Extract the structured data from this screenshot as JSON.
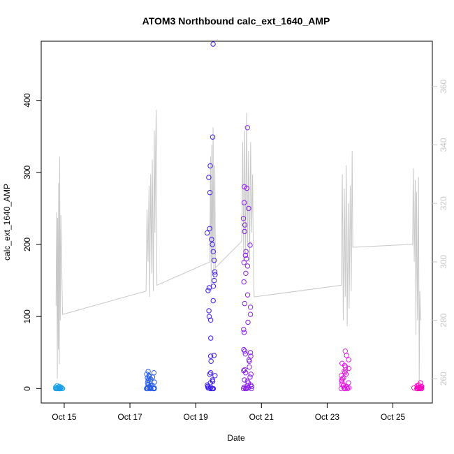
{
  "chart_data": {
    "type": "scatter",
    "title": "ATOM3 Northbound calc_ext_1640_AMP",
    "xlabel": "Date",
    "ylabel": "calc_ext_1640_AMP",
    "x_ticks": [
      "Oct 15",
      "Oct 17",
      "Oct 19",
      "Oct 21",
      "Oct 23",
      "Oct 25"
    ],
    "x_tick_days": [
      15,
      17,
      19,
      21,
      23,
      25
    ],
    "xlim_days": [
      14.3,
      26.2
    ],
    "ylim": [
      -20,
      482
    ],
    "y_ticks": [
      0,
      100,
      200,
      300,
      400
    ],
    "y2_ticks": [
      260,
      280,
      300,
      320,
      340,
      360
    ],
    "y2lim": [
      251.7,
      375.5
    ],
    "y2_color": "#c8c8c8",
    "grid": false,
    "point_series": [
      {
        "day": 14.85,
        "values": [
          0,
          0,
          0,
          0,
          0,
          0,
          0,
          0,
          0,
          1,
          1,
          1,
          2,
          2,
          3,
          4,
          1,
          0
        ],
        "color": "#1a9fe6"
      },
      {
        "day": 17.62,
        "values": [
          0,
          0,
          0,
          0,
          0,
          0,
          0,
          1,
          1,
          2,
          3,
          4,
          5,
          6,
          8,
          9,
          10,
          11,
          13,
          14,
          15,
          16,
          17,
          18,
          20,
          22,
          24,
          0,
          2,
          5
        ],
        "color": "#2a5ee8"
      },
      {
        "day": 19.47,
        "values": [
          0,
          0,
          0,
          0,
          1,
          1,
          2,
          3,
          5,
          8,
          10,
          12,
          18,
          20,
          22,
          38,
          45,
          46,
          70,
          95,
          100,
          108,
          122,
          136,
          140,
          142,
          150,
          158,
          162,
          178,
          190,
          200,
          207,
          216,
          222,
          272,
          293,
          309,
          349,
          478
        ],
        "color": "#3a1cee"
      },
      {
        "day": 20.58,
        "values": [
          0,
          0,
          0,
          0,
          1,
          1,
          2,
          3,
          4,
          5,
          8,
          10,
          12,
          16,
          20,
          22,
          25,
          26,
          30,
          38,
          40,
          45,
          48,
          50,
          52,
          54,
          78,
          82,
          92,
          103,
          113,
          118,
          130,
          148,
          160,
          170,
          175,
          180,
          185,
          190,
          199,
          218,
          227,
          236,
          250,
          258,
          278,
          280,
          362
        ],
        "color": "#8a20ee"
      },
      {
        "day": 23.55,
        "values": [
          0,
          0,
          0,
          0,
          0,
          1,
          1,
          2,
          3,
          4,
          5,
          6,
          8,
          10,
          12,
          14,
          15,
          18,
          20,
          22,
          24,
          26,
          28,
          30,
          32,
          35,
          40,
          46,
          52
        ],
        "color": "#e020e0"
      },
      {
        "day": 25.75,
        "values": [
          0,
          0,
          0,
          0,
          0,
          0,
          0,
          1,
          1,
          2,
          2,
          3,
          5,
          8,
          4,
          1
        ],
        "color": "#ff00c0"
      }
    ],
    "line_series": {
      "axis": "right",
      "color": "#c8c8c8",
      "x_days": [
        14.75,
        14.77,
        14.79,
        14.8,
        14.82,
        14.83,
        14.85,
        14.86,
        14.88,
        14.9,
        14.92,
        14.95,
        17.49,
        17.52,
        17.55,
        17.58,
        17.6,
        17.63,
        17.66,
        17.68,
        17.71,
        17.74,
        17.76,
        17.78,
        17.8,
        17.82,
        19.43,
        19.45,
        19.47,
        19.49,
        19.51,
        19.53,
        19.55,
        19.58,
        19.6,
        20.4,
        20.43,
        20.46,
        20.49,
        20.52,
        20.55,
        20.58,
        20.61,
        20.64,
        20.67,
        20.7,
        20.73,
        20.76,
        20.78,
        23.43,
        23.46,
        23.49,
        23.52,
        23.55,
        23.58,
        23.61,
        23.64,
        23.67,
        23.7,
        23.73,
        23.76,
        23.78,
        25.6,
        25.62,
        25.65,
        25.68,
        25.7,
        25.72,
        25.75,
        25.78,
        25.8,
        25.82,
        25.84
      ],
      "values": [
        285,
        317,
        260,
        315,
        270,
        327,
        265,
        336,
        280,
        316,
        300,
        282,
        290,
        318,
        300,
        326,
        288,
        330,
        296,
        335,
        290,
        345,
        310,
        340,
        352,
        292,
        300,
        336,
        290,
        340,
        300,
        346,
        294,
        333,
        298,
        307,
        341,
        300,
        345,
        303,
        351,
        306,
        338,
        300,
        341,
        310,
        330,
        296,
        288,
        292,
        330,
        280,
        325,
        288,
        333,
        278,
        320,
        284,
        326,
        290,
        338,
        305,
        306,
        332,
        300,
        328,
        275,
        324,
        280,
        329,
        258,
        290,
        280
      ]
    }
  }
}
